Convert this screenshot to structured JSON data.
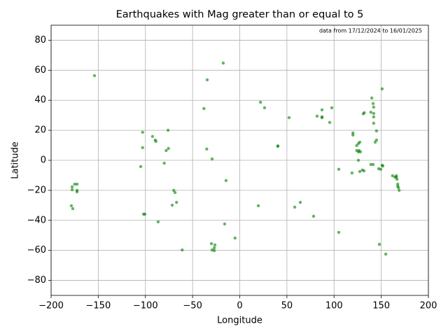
{
  "chart_data": {
    "type": "scatter",
    "title": "Earthquakes with Mag greater than or equal to 5",
    "annotation": "data from 17/12/2024 to 16/01/2025",
    "x_label": "Longitude",
    "y_label": "Latitude",
    "color": "green",
    "grid": true,
    "xlim": [
      -200,
      200
    ],
    "ylim": [
      -90,
      90
    ],
    "xticks": [
      {
        "value": -200,
        "label": "−200"
      },
      {
        "value": -150,
        "label": "−150"
      },
      {
        "value": -100,
        "label": "−100"
      },
      {
        "value": -50,
        "label": "−50"
      },
      0,
      50,
      100,
      150,
      200
    ],
    "yticks": [
      {
        "value": -80,
        "label": "−80"
      },
      {
        "value": -60,
        "label": "−60"
      },
      {
        "value": -40,
        "label": "−40"
      },
      {
        "value": -20,
        "label": "−20"
      },
      0,
      20,
      40,
      60,
      80
    ],
    "x": [
      -154,
      -17.5,
      -34.5,
      -38,
      -103,
      -76,
      -92.5,
      -89.6,
      -88.9,
      -103,
      -35,
      -75.6,
      -78,
      -29.3,
      -105,
      -80,
      -14.5,
      -175,
      -172.5,
      -177.7,
      -177.7,
      -172.5,
      -172.5,
      -70,
      -68.6,
      -67,
      -71.6,
      -178.5,
      -177,
      -102,
      -100.6,
      -86.5,
      -16,
      -61,
      -30,
      -26.3,
      -27,
      -29.3,
      -27,
      -5,
      19.7,
      22,
      26.3,
      40.4,
      40.4,
      52.3,
      58.3,
      64.2,
      78.3,
      82,
      87.2,
      87.2,
      87.2,
      95.4,
      97.6,
      105,
      105,
      119,
      120,
      120,
      124,
      125.8,
      127.3,
      124,
      125.8,
      126.5,
      128,
      125.8,
      127.3,
      130,
      131.7,
      131,
      132,
      139,
      141.4,
      139,
      140,
      141.4,
      142,
      142,
      142,
      142,
      143.6,
      145,
      145,
      147.3,
      149.5,
      151,
      151,
      151.7,
      148,
      154.8,
      162,
      164.5,
      166,
      167.5,
      167.5,
      168.3,
      169,
      166,
      166.7
    ],
    "y": [
      56.4,
      64.8,
      53.6,
      34.5,
      18.7,
      20,
      15.9,
      13.5,
      12.6,
      8.4,
      7.5,
      7.9,
      6.5,
      0.9,
      -4.2,
      -1.9,
      -13.5,
      -15.9,
      -15.9,
      -17.7,
      -19.6,
      -20,
      -21,
      -20,
      -21.5,
      -28,
      -29.9,
      -30.3,
      -32.2,
      -35.9,
      -35.9,
      -41,
      -42.4,
      -59.7,
      -55.5,
      -56.4,
      -58.3,
      -59.7,
      -60.2,
      -51.8,
      -30.3,
      38.7,
      35,
      9.3,
      9.6,
      28.4,
      -31.2,
      -28,
      -37.3,
      29.4,
      33.6,
      28.4,
      29,
      25.2,
      35,
      -6,
      -48,
      -8.4,
      18.2,
      16.8,
      9.8,
      11.2,
      12.1,
      6.5,
      5.6,
      6.5,
      5.6,
      0,
      -7.5,
      -6.5,
      -7,
      31,
      31.7,
      -2.8,
      -2.8,
      32,
      41.5,
      37.8,
      35.4,
      31.2,
      28.9,
      24.7,
      12.1,
      13.5,
      19.6,
      -5.6,
      -6,
      47.6,
      -3.3,
      -3.8,
      -56,
      -62.5,
      -10.3,
      -11.2,
      -11.2,
      -15.9,
      -17.3,
      -18.2,
      -20,
      -10.3,
      -12.6
    ]
  }
}
